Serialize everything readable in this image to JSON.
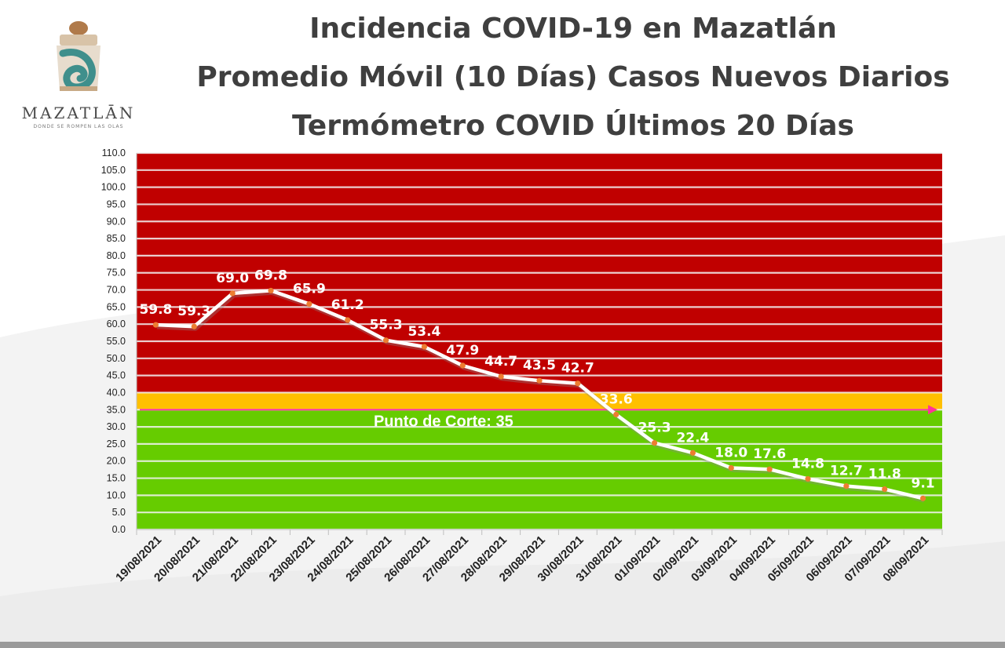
{
  "title": {
    "line1": "Incidencia COVID-19 en Mazatlán",
    "line2": "Promedio Móvil (10 Días) Casos Nuevos Diarios",
    "line3": "Termómetro COVID Últimos 20 Días"
  },
  "logo": {
    "name": "MAZATLĀN",
    "tagline": "DONDE SE ROMPEN LAS OLAS"
  },
  "colors": {
    "red_zone": "#c00000",
    "yellow_zone": "#ffc000",
    "green_zone": "#66cc00",
    "line": "#ffffff",
    "marker": "#ed7d31",
    "cut_arrow": "#ff3399"
  },
  "chart_data": {
    "type": "line",
    "title": "",
    "xlabel": "",
    "ylabel": "",
    "ylim": [
      0,
      110
    ],
    "y_step": 5,
    "grid": true,
    "zones": [
      {
        "name": "red",
        "from": 40,
        "to": 110
      },
      {
        "name": "yellow",
        "from": 35,
        "to": 40
      },
      {
        "name": "green",
        "from": 0,
        "to": 35
      }
    ],
    "threshold": {
      "value": 35,
      "label": "Punto de Corte: 35"
    },
    "x": [
      "19/08/2021",
      "20/08/2021",
      "21/08/2021",
      "22/08/2021",
      "23/08/2021",
      "24/08/2021",
      "25/08/2021",
      "26/08/2021",
      "27/08/2021",
      "28/08/2021",
      "29/08/2021",
      "30/08/2021",
      "31/08/2021",
      "01/09/2021",
      "02/09/2021",
      "03/09/2021",
      "04/09/2021",
      "05/09/2021",
      "06/09/2021",
      "07/09/2021",
      "08/09/2021"
    ],
    "series": [
      {
        "values": [
          59.8,
          59.3,
          69.0,
          69.8,
          65.9,
          61.2,
          55.3,
          53.4,
          47.9,
          44.7,
          43.5,
          42.7,
          33.6,
          25.3,
          22.4,
          18.0,
          17.6,
          14.8,
          12.7,
          11.8,
          9.1
        ],
        "labels": [
          "59.8",
          "59.3",
          "69.0",
          "69.8",
          "65.9",
          "61.2",
          "55.3",
          "53.4",
          "47.9",
          "44.7",
          "43.5",
          "42.7",
          "33.6",
          "25.3",
          "22.4",
          "18.0",
          "17.6",
          "14.8",
          "12.7",
          "11.8",
          "9.1"
        ]
      }
    ]
  }
}
